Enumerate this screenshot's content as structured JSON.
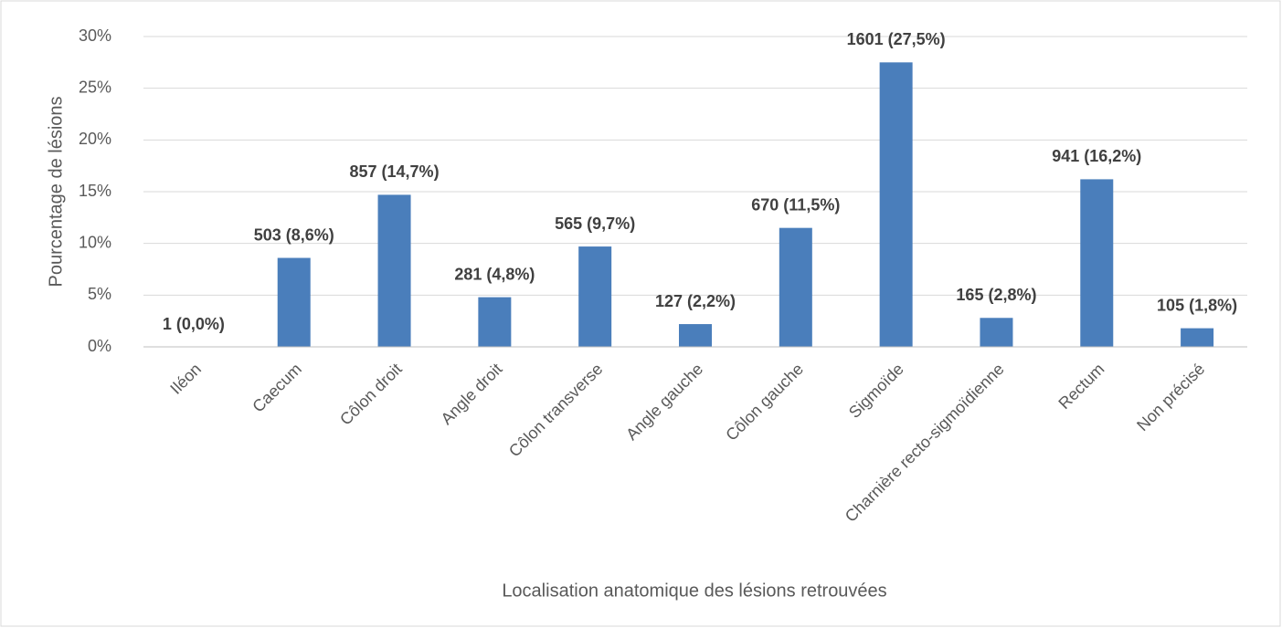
{
  "chart_data": {
    "type": "bar",
    "x_label": "Localisation anatomique des lésions retrouvées",
    "y_label": "Pourcentage de lésions",
    "categories": [
      "Iléon",
      "Caecum",
      "Côlon droit",
      "Angle droit",
      "Côlon transverse",
      "Angle gauche",
      "Côlon gauche",
      "Sigmoïde",
      "Charnière recto-sigmoïdienne",
      "Rectum",
      "Non précisé"
    ],
    "values": [
      0.0,
      8.6,
      14.7,
      4.8,
      9.7,
      2.2,
      11.5,
      27.5,
      2.8,
      16.2,
      1.8
    ],
    "value_labels": [
      "1 (0,0%)",
      "503 (8,6%)",
      "857 (14,7%)",
      "281 (4,8%)",
      "565 (9,7%)",
      "127 (2,2%)",
      "670 (11,5%)",
      "1601 (27,5%)",
      "165 (2,8%)",
      "941 (16,2%)",
      "105 (1,8%)"
    ],
    "color": "#4a7ebb",
    "ylim": [
      0,
      30
    ],
    "yticks": [
      {
        "value": 0,
        "label": "0%"
      },
      {
        "value": 5,
        "label": "5%"
      },
      {
        "value": 10,
        "label": "10%"
      },
      {
        "value": 15,
        "label": "15%"
      },
      {
        "value": 20,
        "label": "20%"
      },
      {
        "value": 25,
        "label": "25%"
      },
      {
        "value": 30,
        "label": "30%"
      }
    ],
    "grid": true
  }
}
